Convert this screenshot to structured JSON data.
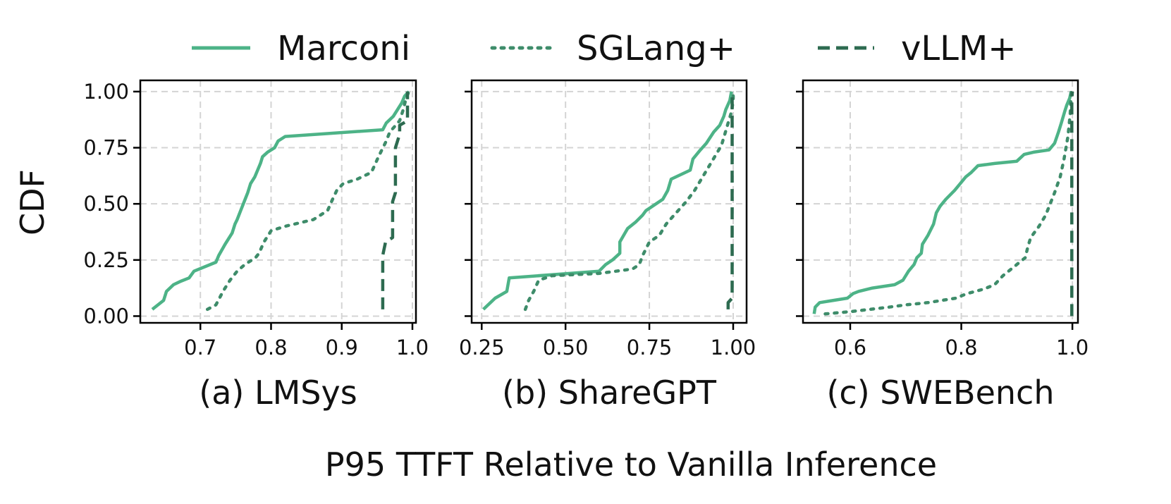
{
  "chart_data": {
    "type": "line",
    "ylabel": "CDF",
    "xlabel": "P95 TTFT Relative to Vanilla Inference",
    "yticks": [
      "0.00",
      "0.25",
      "0.50",
      "0.75",
      "1.00"
    ],
    "ylim": [
      -0.03,
      1.05
    ],
    "grid": true,
    "legend_position": "top",
    "legend": [
      {
        "name": "Marconi",
        "style": "solid",
        "color": "#4db387"
      },
      {
        "name": "SGLang+",
        "style": "dotted",
        "color": "#3e8c6a"
      },
      {
        "name": "vLLM+",
        "style": "dashed",
        "color": "#2d6b50"
      }
    ],
    "panels": [
      {
        "caption": "(a) LMSys",
        "xlim": [
          0.615,
          1.005
        ],
        "xticks": [
          0.7,
          0.8,
          0.9,
          1.0
        ],
        "xtick_labels": [
          "0.7",
          "0.8",
          "0.9",
          "1.0"
        ],
        "series": [
          {
            "name": "Marconi",
            "points": [
              [
                0.632,
                0.03
              ],
              [
                0.648,
                0.07
              ],
              [
                0.652,
                0.11
              ],
              [
                0.662,
                0.14
              ],
              [
                0.672,
                0.155
              ],
              [
                0.684,
                0.17
              ],
              [
                0.691,
                0.2
              ],
              [
                0.722,
                0.24
              ],
              [
                0.726,
                0.27
              ],
              [
                0.735,
                0.32
              ],
              [
                0.745,
                0.37
              ],
              [
                0.749,
                0.41
              ],
              [
                0.752,
                0.43
              ],
              [
                0.757,
                0.47
              ],
              [
                0.762,
                0.51
              ],
              [
                0.767,
                0.55
              ],
              [
                0.771,
                0.59
              ],
              [
                0.777,
                0.62
              ],
              [
                0.785,
                0.68
              ],
              [
                0.788,
                0.71
              ],
              [
                0.795,
                0.73
              ],
              [
                0.805,
                0.75
              ],
              [
                0.81,
                0.78
              ],
              [
                0.82,
                0.8
              ],
              [
                0.958,
                0.83
              ],
              [
                0.963,
                0.86
              ],
              [
                0.973,
                0.89
              ],
              [
                0.985,
                0.95
              ],
              [
                0.989,
                0.98
              ],
              [
                0.995,
                1.0
              ]
            ]
          },
          {
            "name": "SGLang+",
            "points": [
              [
                0.71,
                0.03
              ],
              [
                0.722,
                0.05
              ],
              [
                0.732,
                0.11
              ],
              [
                0.742,
                0.16
              ],
              [
                0.752,
                0.2
              ],
              [
                0.763,
                0.23
              ],
              [
                0.778,
                0.26
              ],
              [
                0.783,
                0.28
              ],
              [
                0.79,
                0.33
              ],
              [
                0.8,
                0.38
              ],
              [
                0.82,
                0.4
              ],
              [
                0.86,
                0.43
              ],
              [
                0.88,
                0.47
              ],
              [
                0.887,
                0.52
              ],
              [
                0.893,
                0.56
              ],
              [
                0.902,
                0.59
              ],
              [
                0.922,
                0.61
              ],
              [
                0.942,
                0.64
              ],
              [
                0.952,
                0.71
              ],
              [
                0.963,
                0.78
              ],
              [
                0.968,
                0.82
              ],
              [
                0.982,
                0.87
              ],
              [
                0.987,
                0.92
              ],
              [
                0.991,
                0.97
              ],
              [
                0.995,
                1.0
              ]
            ]
          },
          {
            "name": "vLLM+",
            "points": [
              [
                0.958,
                0.03
              ],
              [
                0.958,
                0.27
              ],
              [
                0.962,
                0.33
              ],
              [
                0.972,
                0.35
              ],
              [
                0.972,
                0.51
              ],
              [
                0.976,
                0.55
              ],
              [
                0.976,
                0.75
              ],
              [
                0.982,
                0.81
              ],
              [
                0.982,
                0.85
              ],
              [
                0.993,
                0.87
              ],
              [
                0.993,
                1.0
              ]
            ]
          }
        ]
      },
      {
        "caption": "(b) ShareGPT",
        "xlim": [
          0.22,
          1.04
        ],
        "xticks": [
          0.25,
          0.5,
          0.75,
          1.0
        ],
        "xtick_labels": [
          "0.25",
          "0.50",
          "0.75",
          "1.00"
        ],
        "series": [
          {
            "name": "Marconi",
            "points": [
              [
                0.255,
                0.03
              ],
              [
                0.29,
                0.08
              ],
              [
                0.325,
                0.11
              ],
              [
                0.332,
                0.17
              ],
              [
                0.6,
                0.2
              ],
              [
                0.62,
                0.23
              ],
              [
                0.64,
                0.25
              ],
              [
                0.662,
                0.28
              ],
              [
                0.662,
                0.33
              ],
              [
                0.685,
                0.39
              ],
              [
                0.71,
                0.42
              ],
              [
                0.73,
                0.45
              ],
              [
                0.74,
                0.47
              ],
              [
                0.76,
                0.49
              ],
              [
                0.79,
                0.52
              ],
              [
                0.805,
                0.56
              ],
              [
                0.815,
                0.61
              ],
              [
                0.872,
                0.65
              ],
              [
                0.88,
                0.7
              ],
              [
                0.902,
                0.74
              ],
              [
                0.92,
                0.77
              ],
              [
                0.942,
                0.82
              ],
              [
                0.96,
                0.85
              ],
              [
                0.972,
                0.89
              ],
              [
                0.978,
                0.92
              ],
              [
                0.99,
                0.96
              ],
              [
                0.995,
                1.0
              ]
            ]
          },
          {
            "name": "SGLang+",
            "points": [
              [
                0.38,
                0.03
              ],
              [
                0.39,
                0.07
              ],
              [
                0.405,
                0.11
              ],
              [
                0.42,
                0.16
              ],
              [
                0.46,
                0.18
              ],
              [
                0.6,
                0.19
              ],
              [
                0.7,
                0.21
              ],
              [
                0.72,
                0.23
              ],
              [
                0.73,
                0.27
              ],
              [
                0.75,
                0.33
              ],
              [
                0.78,
                0.36
              ],
              [
                0.8,
                0.41
              ],
              [
                0.83,
                0.46
              ],
              [
                0.86,
                0.51
              ],
              [
                0.885,
                0.56
              ],
              [
                0.905,
                0.61
              ],
              [
                0.925,
                0.66
              ],
              [
                0.945,
                0.71
              ],
              [
                0.965,
                0.76
              ],
              [
                0.975,
                0.81
              ],
              [
                0.985,
                0.86
              ],
              [
                0.995,
                0.91
              ],
              [
                1.0,
                0.96
              ],
              [
                1.0,
                1.0
              ]
            ]
          },
          {
            "name": "vLLM+",
            "points": [
              [
                0.985,
                0.03
              ],
              [
                0.985,
                0.06
              ],
              [
                0.997,
                0.08
              ],
              [
                0.997,
                1.0
              ]
            ]
          }
        ]
      },
      {
        "caption": "(c) SWEBench",
        "xlim": [
          0.515,
          1.01
        ],
        "xticks": [
          0.6,
          0.8,
          1.0
        ],
        "xtick_labels": [
          "0.6",
          "0.8",
          "1.0"
        ],
        "series": [
          {
            "name": "Marconi",
            "points": [
              [
                0.535,
                0.01
              ],
              [
                0.537,
                0.04
              ],
              [
                0.545,
                0.06
              ],
              [
                0.57,
                0.07
              ],
              [
                0.595,
                0.08
              ],
              [
                0.605,
                0.1
              ],
              [
                0.615,
                0.11
              ],
              [
                0.64,
                0.125
              ],
              [
                0.68,
                0.14
              ],
              [
                0.695,
                0.16
              ],
              [
                0.705,
                0.2
              ],
              [
                0.715,
                0.23
              ],
              [
                0.72,
                0.26
              ],
              [
                0.728,
                0.28
              ],
              [
                0.73,
                0.32
              ],
              [
                0.74,
                0.36
              ],
              [
                0.75,
                0.41
              ],
              [
                0.755,
                0.46
              ],
              [
                0.762,
                0.49
              ],
              [
                0.772,
                0.52
              ],
              [
                0.788,
                0.56
              ],
              [
                0.798,
                0.59
              ],
              [
                0.808,
                0.62
              ],
              [
                0.818,
                0.64
              ],
              [
                0.83,
                0.67
              ],
              [
                0.86,
                0.68
              ],
              [
                0.9,
                0.69
              ],
              [
                0.913,
                0.72
              ],
              [
                0.93,
                0.73
              ],
              [
                0.958,
                0.74
              ],
              [
                0.968,
                0.77
              ],
              [
                0.975,
                0.82
              ],
              [
                0.98,
                0.86
              ],
              [
                0.986,
                0.91
              ],
              [
                0.99,
                0.94
              ],
              [
                0.995,
                0.97
              ],
              [
                0.998,
                1.0
              ]
            ]
          },
          {
            "name": "SGLang+",
            "points": [
              [
                0.555,
                0.01
              ],
              [
                0.6,
                0.02
              ],
              [
                0.67,
                0.04
              ],
              [
                0.7,
                0.05
              ],
              [
                0.74,
                0.06
              ],
              [
                0.79,
                0.08
              ],
              [
                0.81,
                0.1
              ],
              [
                0.84,
                0.12
              ],
              [
                0.86,
                0.14
              ],
              [
                0.875,
                0.18
              ],
              [
                0.895,
                0.22
              ],
              [
                0.915,
                0.26
              ],
              [
                0.92,
                0.31
              ],
              [
                0.925,
                0.35
              ],
              [
                0.94,
                0.4
              ],
              [
                0.952,
                0.45
              ],
              [
                0.96,
                0.5
              ],
              [
                0.968,
                0.55
              ],
              [
                0.978,
                0.62
              ],
              [
                0.985,
                0.7
              ],
              [
                0.992,
                0.8
              ],
              [
                0.996,
                0.9
              ],
              [
                0.998,
                1.0
              ]
            ]
          },
          {
            "name": "vLLM+",
            "points": [
              [
                0.999,
                0.0
              ],
              [
                0.999,
                0.96
              ],
              [
                1.0,
                1.0
              ]
            ]
          }
        ]
      }
    ]
  }
}
